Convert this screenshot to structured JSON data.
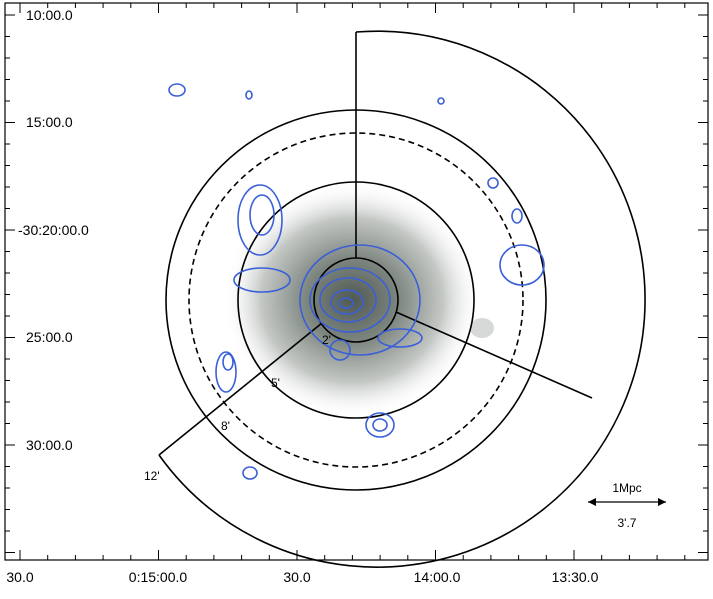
{
  "axes": {
    "y_ticks": [
      "10:00.0",
      "15:00.0",
      "-30:20:00.0",
      "25:00.0",
      "30:00.0"
    ],
    "x_ticks": [
      "30.0",
      "0:15:00.0",
      "30.0",
      "14:00.0",
      "13:30.0"
    ]
  },
  "regions": [
    "2'",
    "5'",
    "8'",
    "12'"
  ],
  "scale_bar": {
    "label": "1Mpc",
    "size": "3'.7"
  }
}
